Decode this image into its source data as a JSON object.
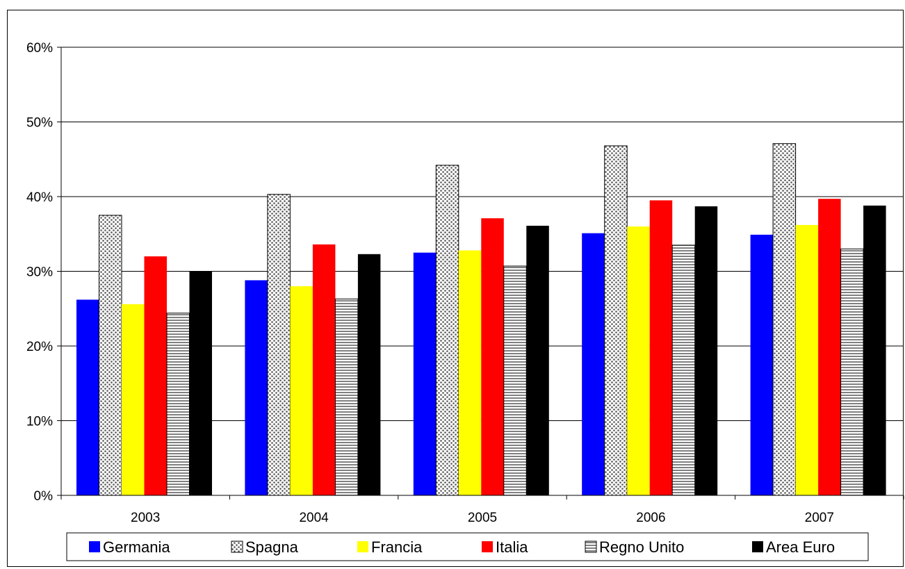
{
  "chart_data": {
    "type": "bar",
    "title": "",
    "xlabel": "",
    "ylabel": "",
    "categories": [
      "2003",
      "2004",
      "2005",
      "2006",
      "2007"
    ],
    "ylim": [
      0,
      60
    ],
    "yticks": [
      0,
      10,
      20,
      30,
      40,
      50,
      60
    ],
    "ytick_labels": [
      "0%",
      "10%",
      "20%",
      "30%",
      "40%",
      "50%",
      "60%"
    ],
    "grid": true,
    "legend_position": "bottom",
    "series": [
      {
        "name": "Germania",
        "color": "#0000ff",
        "pattern": "solid",
        "values": [
          26.2,
          28.8,
          32.5,
          35.1,
          34.9
        ]
      },
      {
        "name": "Spagna",
        "color": "#c8c8c8",
        "pattern": "dots",
        "values": [
          37.5,
          40.3,
          44.2,
          46.8,
          47.1
        ]
      },
      {
        "name": "Francia",
        "color": "#ffff00",
        "pattern": "solid",
        "values": [
          25.6,
          28.0,
          32.8,
          36.0,
          36.2
        ]
      },
      {
        "name": "Italia",
        "color": "#ff0000",
        "pattern": "solid",
        "values": [
          32.0,
          33.6,
          37.1,
          39.5,
          39.7
        ]
      },
      {
        "name": "Regno Unito",
        "color": "#bfbfbf",
        "pattern": "stripes",
        "values": [
          24.4,
          26.3,
          30.7,
          33.5,
          33.0
        ]
      },
      {
        "name": "Area Euro",
        "color": "#000000",
        "pattern": "solid",
        "values": [
          30.0,
          32.3,
          36.1,
          38.7,
          38.8
        ]
      }
    ]
  }
}
